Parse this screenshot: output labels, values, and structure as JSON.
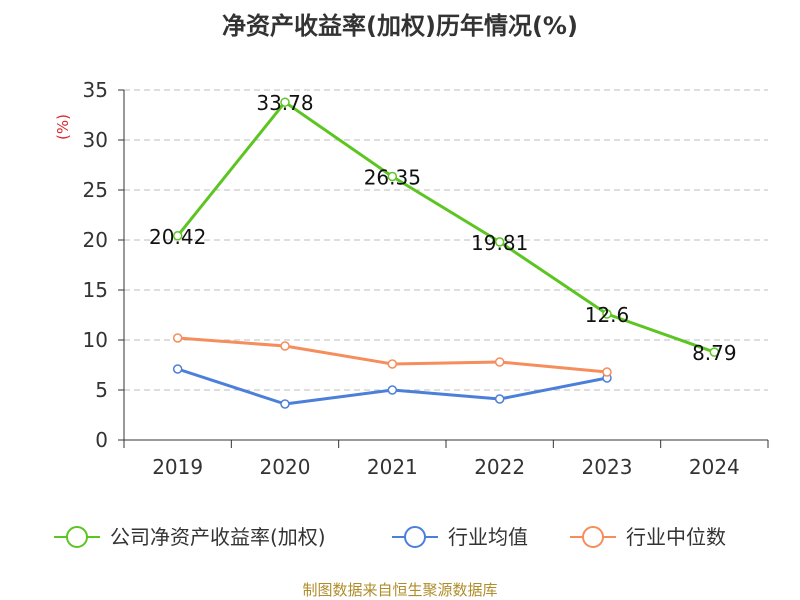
{
  "chart_data": {
    "type": "line",
    "title": "净资产收益率(加权)历年情况(%)",
    "ylabel": "(%)",
    "categories": [
      "2019",
      "2020",
      "2021",
      "2022",
      "2023",
      "2024"
    ],
    "ylim": [
      0,
      35
    ],
    "yticks": [
      0,
      5,
      10,
      15,
      20,
      25,
      30,
      35
    ],
    "grid": true,
    "legend_position": "bottom",
    "series": [
      {
        "name": "公司净资产收益率(加权)",
        "color": "#5cc522",
        "values": [
          20.42,
          33.78,
          26.35,
          19.81,
          12.6,
          8.79
        ],
        "labels": [
          "20.42",
          "33.78",
          "26.35",
          "19.81",
          "12.6",
          "8.79"
        ]
      },
      {
        "name": "行业均值",
        "color": "#4c7fd9",
        "values": [
          7.1,
          3.6,
          5.0,
          4.1,
          6.2,
          null
        ]
      },
      {
        "name": "行业中位数",
        "color": "#f58d5c",
        "values": [
          10.2,
          9.4,
          7.6,
          7.8,
          6.8,
          null
        ]
      }
    ]
  },
  "footer": {
    "source": "制图数据来自恒生聚源数据库"
  }
}
